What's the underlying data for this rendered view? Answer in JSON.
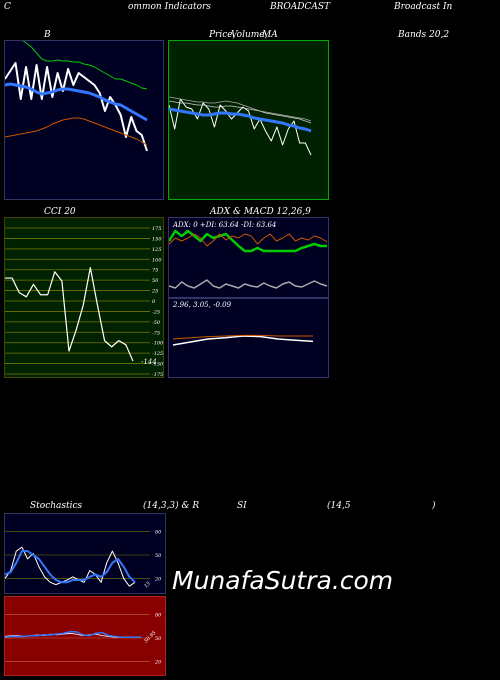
{
  "header": {
    "part1": "C",
    "part2": "ommon Indicators",
    "part3": "BROADCAST",
    "part4": "Broadcast In"
  },
  "row1": {
    "label_b": "B",
    "label_price": "Price,",
    "label_volume": "Volume,",
    "label_ma": "MA",
    "label_bands": "Bands 20,2"
  },
  "row2": {
    "label_cci": "CCI 20",
    "label_adx": "ADX  & MACD 12,26,9"
  },
  "row3": {
    "label_stoch": "Stochastics",
    "label_params": "(14,3,3) & R",
    "label_si": "SI",
    "label_rsi_params": "(14,5",
    "label_close": ")"
  },
  "watermark": "MunafaSutra.com",
  "colors": {
    "panel_bg": "#000022",
    "green_panel_bg": "#002200",
    "cci_bg": "#002200",
    "red_panel_bg": "#880000",
    "grid_olive": "#777700",
    "white": "#ffffff",
    "blue": "#3377ff",
    "green": "#00cc00",
    "orange": "#cc5500",
    "gray": "#aaaaaa"
  },
  "chart_data": [
    {
      "id": "bollinger",
      "type": "line",
      "title": "B",
      "series": [
        {
          "role": "price",
          "color": "#ffffff",
          "values": [
            78,
            70,
            62,
            98,
            66,
            98,
            64,
            98,
            66,
            96,
            72,
            90,
            68,
            84,
            72,
            76,
            80,
            84,
            92,
            110,
            96,
            104,
            114,
            136,
            116,
            130,
            134,
            150
          ]
        },
        {
          "role": "upper",
          "color": "#00cc00",
          "values": [
            33,
            33,
            35,
            38,
            42,
            46,
            52,
            58,
            60,
            60,
            59,
            60,
            60,
            61,
            61,
            63,
            64,
            66,
            69,
            72,
            75,
            78,
            78,
            80,
            82,
            84,
            87,
            88
          ]
        },
        {
          "role": "middle",
          "color": "#3377ff",
          "values": [
            84,
            83,
            84,
            85,
            86,
            88,
            91,
            93,
            92,
            91,
            89,
            88,
            88,
            89,
            90,
            91,
            92,
            94,
            96,
            99,
            101,
            103,
            104,
            107,
            110,
            113,
            116,
            119
          ]
        },
        {
          "role": "lower",
          "color": "#cc5500",
          "values": [
            136,
            135,
            134,
            133,
            132,
            131,
            130,
            128,
            126,
            123,
            121,
            119,
            118,
            117,
            117,
            118,
            120,
            122,
            124,
            126,
            128,
            130,
            132,
            134,
            136,
            138,
            141,
            144
          ]
        }
      ]
    },
    {
      "id": "price_ma",
      "type": "line",
      "title": "Price, Volume, MA",
      "series": [
        {
          "role": "price",
          "color": "#ffffff",
          "values": [
            104,
            128,
            98,
            106,
            108,
            118,
            102,
            108,
            126,
            104,
            110,
            118,
            112,
            106,
            110,
            128,
            118,
            130,
            140,
            126,
            144,
            128,
            120,
            142,
            142,
            154
          ]
        },
        {
          "role": "ma_fast",
          "color": "#3377ff",
          "values": [
            108,
            109,
            110,
            111,
            112,
            113,
            114,
            114,
            113,
            112,
            112,
            113,
            113,
            114,
            115,
            117,
            118,
            119,
            120,
            121,
            122,
            124,
            125,
            127,
            128,
            130
          ]
        },
        {
          "role": "ma_mid",
          "color": "#aaaaaa",
          "values": [
            96,
            97,
            98,
            99,
            100,
            101,
            101,
            102,
            102,
            101,
            100,
            101,
            102,
            104,
            106,
            108,
            110,
            111,
            112,
            113,
            114,
            115,
            116,
            117,
            118,
            120
          ]
        },
        {
          "role": "ma_slow",
          "color": "#cccccc",
          "values": [
            100,
            101,
            102,
            102,
            103,
            104,
            104,
            105,
            106,
            106,
            105,
            105,
            106,
            107,
            108,
            109,
            110,
            112,
            113,
            114,
            115,
            116,
            117,
            118,
            120,
            122
          ]
        }
      ]
    },
    {
      "id": "cci",
      "type": "line",
      "title": "CCI 20",
      "yticks": [
        175,
        150,
        125,
        100,
        75,
        50,
        25,
        0,
        -25,
        -50,
        -75,
        -100,
        -125,
        -150,
        -175
      ],
      "ylim": [
        -185,
        185
      ],
      "last_label": "-144",
      "series": [
        {
          "role": "cci",
          "color": "#ffffff",
          "values": [
            55,
            55,
            20,
            10,
            40,
            15,
            15,
            70,
            48,
            -120,
            -70,
            -10,
            80,
            -10,
            -95,
            -110,
            -95,
            -105,
            -144
          ]
        }
      ]
    },
    {
      "id": "adx",
      "type": "line",
      "title": "ADX & MACD 12,26,9",
      "readout": "ADX: 0  +DI: 63.64  -DI: 63.64",
      "series": [
        {
          "role": "plus_di",
          "color": "#00cc00",
          "values": [
            55,
            65,
            60,
            65,
            60,
            55,
            62,
            58,
            60,
            62,
            56,
            50,
            45,
            45,
            48,
            45,
            45,
            45,
            45,
            45,
            45,
            48,
            50,
            52,
            50,
            50
          ]
        },
        {
          "role": "minus_di",
          "color": "#cc5500",
          "values": [
            52,
            58,
            55,
            58,
            62,
            58,
            50,
            55,
            62,
            56,
            60,
            58,
            62,
            60,
            52,
            58,
            62,
            55,
            58,
            62,
            55,
            58,
            56,
            60,
            58,
            54
          ]
        },
        {
          "role": "adx",
          "color": "#aaaaaa",
          "values": [
            10,
            8,
            14,
            10,
            8,
            12,
            16,
            10,
            8,
            12,
            10,
            8,
            12,
            10,
            9,
            13,
            10,
            8,
            12,
            14,
            10,
            9,
            12,
            15,
            12,
            10
          ]
        }
      ]
    },
    {
      "id": "macd",
      "type": "line",
      "title": "MACD 12,26,9",
      "readout": "2.96,  3.05,  -0.09",
      "series": [
        {
          "role": "macd",
          "color": "#ffffff",
          "values": [
            2.9,
            2.95,
            3.0,
            3.02,
            3.05,
            3.04,
            3.0,
            2.98,
            2.96
          ]
        },
        {
          "role": "signal",
          "color": "#cc5500",
          "values": [
            3.0,
            3.02,
            3.04,
            3.05,
            3.06,
            3.06,
            3.05,
            3.05,
            3.05
          ]
        }
      ]
    },
    {
      "id": "stochastics",
      "type": "line",
      "title": "Stochastics (14,3,3)",
      "yticks": [
        80,
        50,
        20
      ],
      "ylim": [
        0,
        100
      ],
      "last_label": "15",
      "series": [
        {
          "role": "k",
          "color": "#ffffff",
          "values": [
            20,
            30,
            55,
            60,
            45,
            52,
            35,
            22,
            15,
            12,
            15,
            18,
            22,
            18,
            15,
            30,
            25,
            15,
            40,
            55,
            40,
            20,
            10,
            15
          ]
        },
        {
          "role": "d",
          "color": "#3377ff",
          "values": [
            25,
            28,
            40,
            55,
            55,
            50,
            45,
            35,
            25,
            18,
            15,
            15,
            18,
            18,
            18,
            22,
            25,
            22,
            28,
            40,
            45,
            35,
            22,
            15
          ]
        }
      ]
    },
    {
      "id": "rsi",
      "type": "line",
      "title": "RSI (14,5)",
      "yticks": [
        80,
        50,
        20
      ],
      "ylim": [
        0,
        100
      ],
      "last_label": "50.95",
      "series": [
        {
          "role": "rsi",
          "color": "#ffffff",
          "values": [
            52,
            53,
            53,
            52,
            53,
            54,
            53,
            55,
            54,
            55,
            56,
            55,
            53,
            54,
            55,
            53,
            52,
            51,
            51,
            51,
            51,
            51
          ]
        },
        {
          "role": "rsi_ma",
          "color": "#3377ff",
          "values": [
            51,
            52,
            52,
            52,
            53,
            53,
            54,
            54,
            55,
            56,
            58,
            58,
            54,
            53,
            56,
            57,
            53,
            52,
            51,
            51,
            51,
            51
          ]
        }
      ]
    }
  ]
}
